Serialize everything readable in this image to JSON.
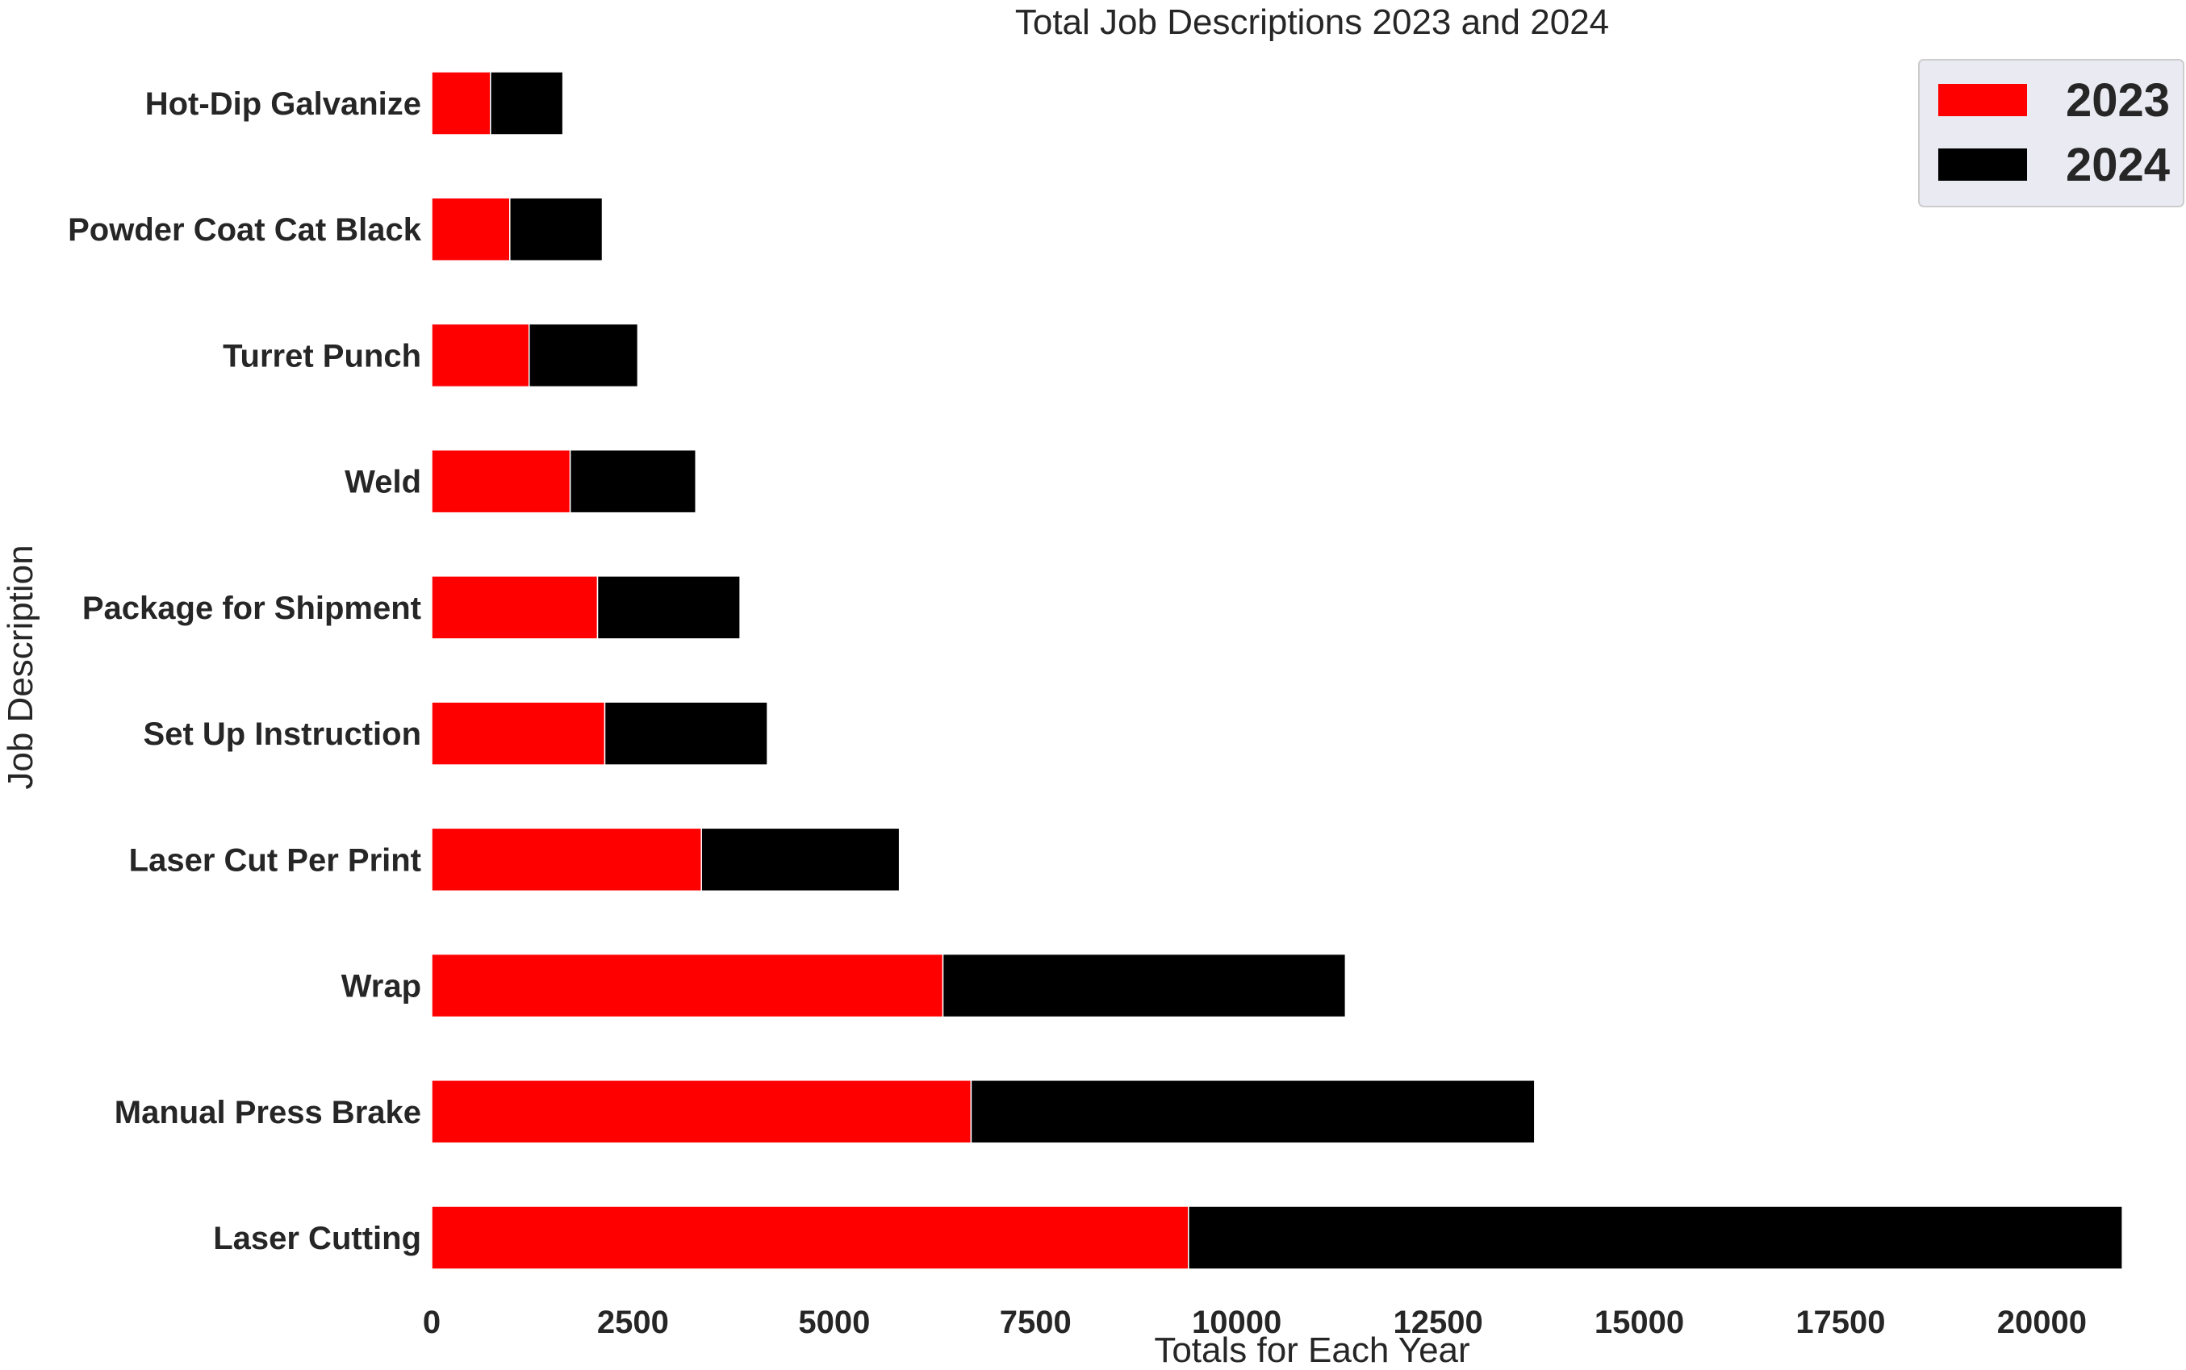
{
  "chart_data": {
    "type": "bar",
    "orientation": "horizontal",
    "stacked": true,
    "title": "Total Job Descriptions 2023 and 2024",
    "xlabel": "Totals for Each Year",
    "ylabel": "Job Description",
    "xlim": [
      0,
      21500
    ],
    "xticks": [
      0,
      2500,
      5000,
      7500,
      10000,
      12500,
      15000,
      17500,
      20000
    ],
    "grid": false,
    "legend": "top-right",
    "categories": [
      "Laser Cutting",
      "Manual Press Brake",
      "Wrap",
      "Laser Cut Per Print",
      "Set Up Instruction",
      "Package for Shipment",
      "Weld",
      "Turret Punch",
      "Powder Coat Cat Black",
      "Hot-Dip Galvanize"
    ],
    "series": [
      {
        "name": "2023",
        "color": "#ff0000",
        "values": [
          9400,
          6700,
          6350,
          3350,
          2150,
          2060,
          1720,
          1210,
          970,
          730
        ]
      },
      {
        "name": "2024",
        "color": "#000000",
        "values": [
          11600,
          7000,
          5000,
          2460,
          2020,
          1770,
          1560,
          1350,
          1150,
          900
        ]
      }
    ]
  }
}
